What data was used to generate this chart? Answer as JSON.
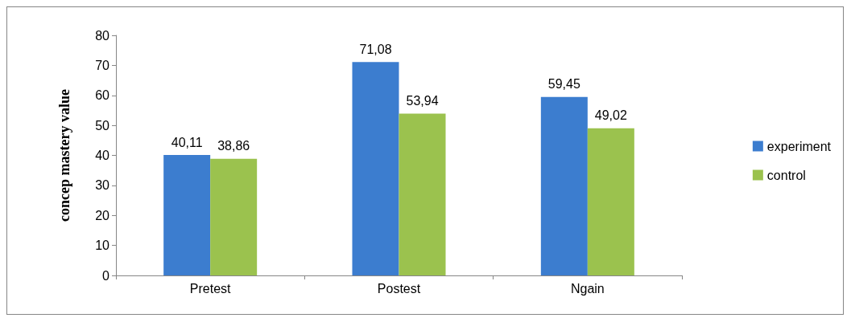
{
  "chart_data": {
    "type": "bar",
    "ylabel": "concep mastery value",
    "categories": [
      "Pretest",
      "Postest",
      "Ngain"
    ],
    "series": [
      {
        "name": "experiment",
        "color": "#3c7dcf",
        "values": [
          40.11,
          71.08,
          59.45
        ],
        "value_labels": [
          "40,11",
          "71,08",
          "59,45"
        ]
      },
      {
        "name": "control",
        "color": "#9bc24e",
        "values": [
          38.86,
          53.94,
          49.02
        ],
        "value_labels": [
          "38,86",
          "53,94",
          "49,02"
        ]
      }
    ],
    "ylim": [
      0,
      80
    ],
    "yticks": [
      0,
      10,
      20,
      30,
      40,
      50,
      60,
      70,
      80
    ],
    "grid": false,
    "legend": "right"
  }
}
